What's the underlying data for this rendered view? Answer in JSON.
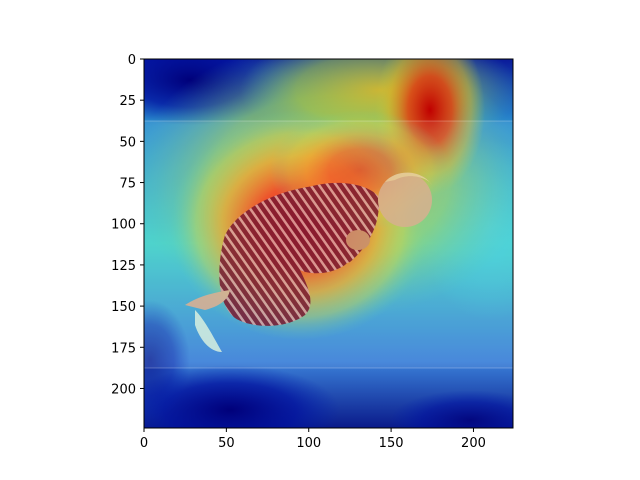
{
  "chart_data": {
    "type": "heatmap",
    "title": "",
    "xlabel": "",
    "ylabel": "",
    "xlim": [
      0,
      224
    ],
    "ylim": [
      224,
      0
    ],
    "x_ticks": [
      0,
      50,
      100,
      150,
      200
    ],
    "y_ticks": [
      0,
      25,
      50,
      75,
      100,
      125,
      150,
      175,
      200
    ],
    "x_tick_labels": [
      "0",
      "50",
      "100",
      "150",
      "200"
    ],
    "y_tick_labels": [
      "0",
      "25",
      "50",
      "75",
      "100",
      "125",
      "150",
      "175",
      "200"
    ],
    "colormap": "jet",
    "overlay": "grad-cam saliency over photo of a person lying curled on the floor in striped pajamas",
    "grid": false,
    "image_band_rows": [
      38,
      188
    ],
    "hot_spots": [
      {
        "x": 105,
        "y": 105,
        "intensity": 1.0
      },
      {
        "x": 172,
        "y": 35,
        "intensity": 0.95
      },
      {
        "x": 140,
        "y": 80,
        "intensity": 0.8
      }
    ],
    "cold_spots": [
      {
        "x": 30,
        "y": 10,
        "intensity": 0.0
      },
      {
        "x": 60,
        "y": 215,
        "intensity": 0.0
      }
    ]
  }
}
